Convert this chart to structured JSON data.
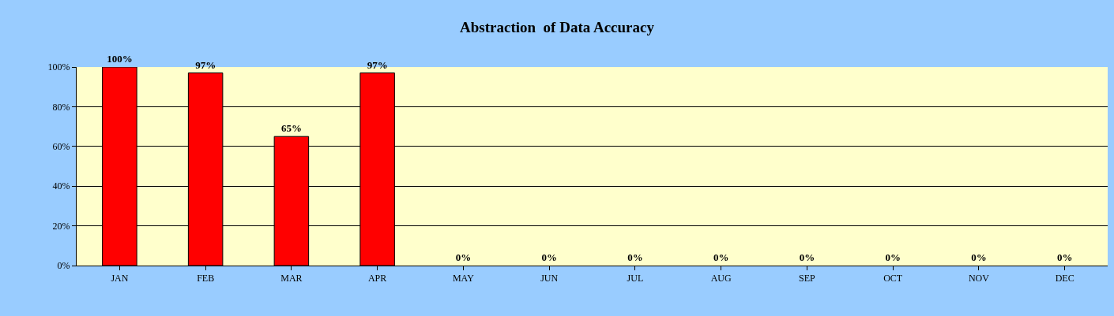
{
  "chart_data": {
    "type": "bar",
    "title": "Abstraction  of Data Accuracy",
    "categories": [
      "JAN",
      "FEB",
      "MAR",
      "APR",
      "MAY",
      "JUN",
      "JUL",
      "AUG",
      "SEP",
      "OCT",
      "NOV",
      "DEC"
    ],
    "values": [
      100,
      97,
      65,
      97,
      0,
      0,
      0,
      0,
      0,
      0,
      0,
      0
    ],
    "value_labels": [
      "100%",
      "97%",
      "65%",
      "97%",
      "0%",
      "0%",
      "0%",
      "0%",
      "0%",
      "0%",
      "0%",
      "0%"
    ],
    "color": "#ff0000",
    "ylim": [
      0,
      100
    ],
    "yticks": [
      {
        "value": 0,
        "label": "0%"
      },
      {
        "value": 20,
        "label": "20%"
      },
      {
        "value": 40,
        "label": "40%"
      },
      {
        "value": 60,
        "label": "60%"
      },
      {
        "value": 80,
        "label": "80%"
      },
      {
        "value": 100,
        "label": "100%"
      }
    ],
    "grid": "y",
    "legend": false
  }
}
